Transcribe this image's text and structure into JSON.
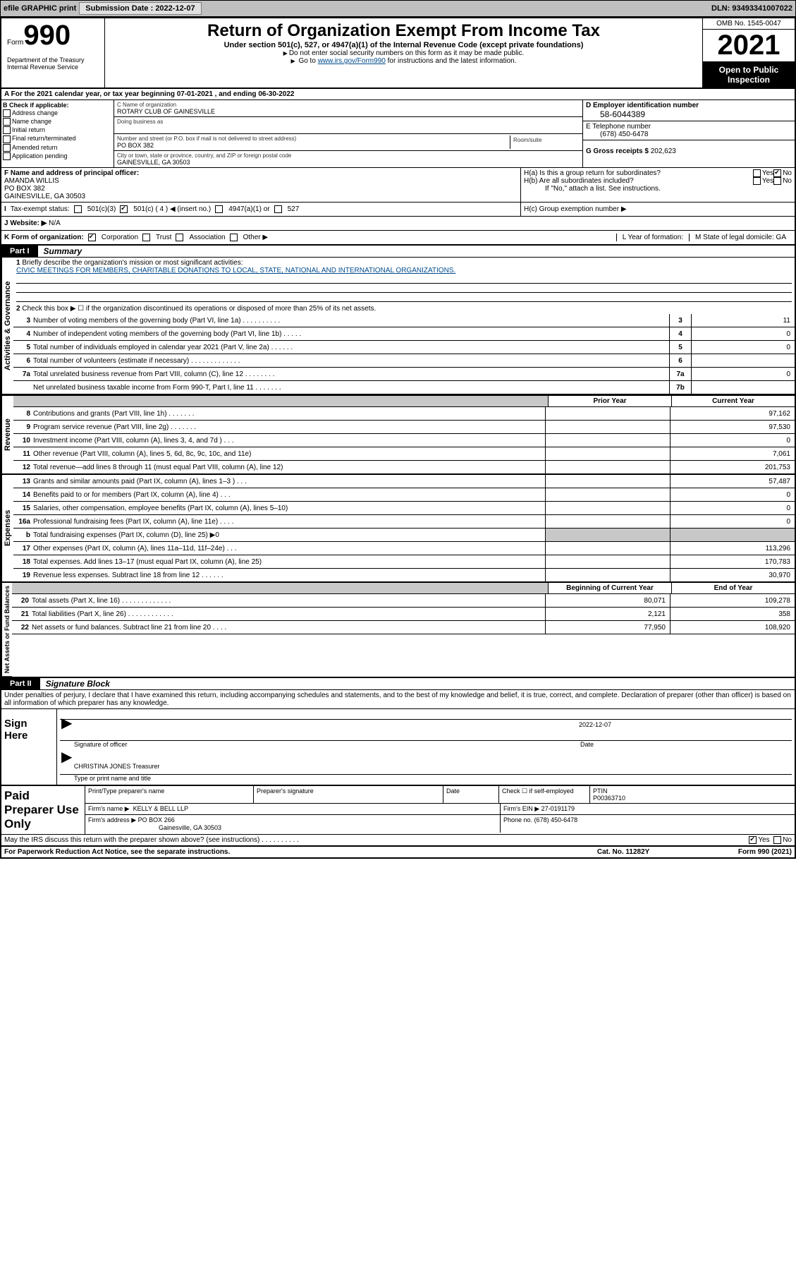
{
  "topbar": {
    "efile": "efile GRAPHIC print",
    "submission_label": "Submission Date : 2022-12-07",
    "dln": "DLN: 93493341007022"
  },
  "header": {
    "form_word": "Form",
    "form_num": "990",
    "dept": "Department of the Treasury\nInternal Revenue Service",
    "title": "Return of Organization Exempt From Income Tax",
    "sub": "Under section 501(c), 527, or 4947(a)(1) of the Internal Revenue Code (except private foundations)",
    "note1": "Do not enter social security numbers on this form as it may be made public.",
    "note2_pre": "Go to ",
    "note2_link": "www.irs.gov/Form990",
    "note2_post": " for instructions and the latest information.",
    "omb": "OMB No. 1545-0047",
    "year": "2021",
    "open": "Open to Public Inspection"
  },
  "lineA": "A For the 2021 calendar year, or tax year beginning 07-01-2021   , and ending 06-30-2022",
  "B": {
    "label": "B Check if applicable:",
    "opts": [
      "Address change",
      "Name change",
      "Initial return",
      "Final return/terminated",
      "Amended return",
      "Application pending"
    ]
  },
  "C": {
    "name_label": "C Name of organization",
    "name": "ROTARY CLUB OF GAINESVILLE",
    "dba_label": "Doing business as",
    "addr_label": "Number and street (or P.O. box if mail is not delivered to street address)",
    "addr": "PO BOX 382",
    "room_label": "Room/suite",
    "city_label": "City or town, state or province, country, and ZIP or foreign postal code",
    "city": "GAINESVILLE, GA  30503"
  },
  "D": {
    "ein_label": "D Employer identification number",
    "ein": "58-6044389",
    "tel_label": "E Telephone number",
    "tel": "(678) 450-6478",
    "gross_label": "G Gross receipts $",
    "gross": "202,623"
  },
  "F": {
    "label": "F  Name and address of principal officer:",
    "name": "AMANDA WILLIS",
    "addr1": "PO BOX 382",
    "addr2": "GAINESVILLE, GA  30503"
  },
  "H": {
    "a": "H(a)  Is this a group return for subordinates?",
    "b": "H(b)  Are all subordinates included?",
    "ifno": "If \"No,\" attach a list. See instructions.",
    "c": "H(c)  Group exemption number ▶",
    "yes": "Yes",
    "no": "No"
  },
  "I": {
    "label": "Tax-exempt status:",
    "o1": "501(c)(3)",
    "o2": "501(c) ( 4 ) ◀ (insert no.)",
    "o3": "4947(a)(1) or",
    "o4": "527"
  },
  "J": {
    "label": "Website: ▶",
    "val": "N/A"
  },
  "K": {
    "label": "K Form of organization:",
    "o1": "Corporation",
    "o2": "Trust",
    "o3": "Association",
    "o4": "Other ▶"
  },
  "L": {
    "label": "L Year of formation:"
  },
  "M": {
    "label": "M State of legal domicile: GA"
  },
  "PartI": {
    "tab": "Part I",
    "title": "Summary"
  },
  "mission": {
    "label": "Briefly describe the organization's mission or most significant activities:",
    "text": "CIVIC MEETINGS FOR MEMBERS, CHARITABLE DONATIONS TO LOCAL, STATE, NATIONAL AND INTERNATIONAL ORGANIZATIONS."
  },
  "line2": "Check this box ▶ ☐  if the organization discontinued its operations or disposed of more than 25% of its net assets.",
  "governance": [
    {
      "n": "3",
      "d": "Number of voting members of the governing body (Part VI, line 1a)  .  .  .  .  .  .  .  .  .  .",
      "b": "3",
      "v": "11"
    },
    {
      "n": "4",
      "d": "Number of independent voting members of the governing body (Part VI, line 1b)  .  .  .  .  .",
      "b": "4",
      "v": "0"
    },
    {
      "n": "5",
      "d": "Total number of individuals employed in calendar year 2021 (Part V, line 2a)  .  .  .  .  .  .",
      "b": "5",
      "v": "0"
    },
    {
      "n": "6",
      "d": "Total number of volunteers (estimate if necessary)  .  .  .  .  .  .  .  .  .  .  .  .  .",
      "b": "6",
      "v": ""
    },
    {
      "n": "7a",
      "d": "Total unrelated business revenue from Part VIII, column (C), line 12  .  .  .  .  .  .  .  .",
      "b": "7a",
      "v": "0"
    },
    {
      "n": "",
      "d": "Net unrelated business taxable income from Form 990-T, Part I, line 11  .  .  .  .  .  .  .",
      "b": "7b",
      "v": ""
    }
  ],
  "prior_label": "Prior Year",
  "current_label": "Current Year",
  "begin_label": "Beginning of Current Year",
  "end_label": "End of Year",
  "revenue": [
    {
      "n": "8",
      "d": "Contributions and grants (Part VIII, line 1h)  .  .  .  .  .  .  .",
      "p": "",
      "c": "97,162"
    },
    {
      "n": "9",
      "d": "Program service revenue (Part VIII, line 2g)  .  .  .  .  .  .  .",
      "p": "",
      "c": "97,530"
    },
    {
      "n": "10",
      "d": "Investment income (Part VIII, column (A), lines 3, 4, and 7d )  .  .  .",
      "p": "",
      "c": "0"
    },
    {
      "n": "11",
      "d": "Other revenue (Part VIII, column (A), lines 5, 6d, 8c, 9c, 10c, and 11e)",
      "p": "",
      "c": "7,061"
    },
    {
      "n": "12",
      "d": "Total revenue—add lines 8 through 11 (must equal Part VIII, column (A), line 12)",
      "p": "",
      "c": "201,753"
    }
  ],
  "expenses": [
    {
      "n": "13",
      "d": "Grants and similar amounts paid (Part IX, column (A), lines 1–3 )  .  .  .",
      "p": "",
      "c": "57,487"
    },
    {
      "n": "14",
      "d": "Benefits paid to or for members (Part IX, column (A), line 4)  .  .  .",
      "p": "",
      "c": "0"
    },
    {
      "n": "15",
      "d": "Salaries, other compensation, employee benefits (Part IX, column (A), lines 5–10)",
      "p": "",
      "c": "0"
    },
    {
      "n": "16a",
      "d": "Professional fundraising fees (Part IX, column (A), line 11e)  .  .  .  .",
      "p": "",
      "c": "0"
    },
    {
      "n": "b",
      "d": "Total fundraising expenses (Part IX, column (D), line 25) ▶0",
      "p": "shaded",
      "c": "shaded"
    },
    {
      "n": "17",
      "d": "Other expenses (Part IX, column (A), lines 11a–11d, 11f–24e)  .  .  .",
      "p": "",
      "c": "113,296"
    },
    {
      "n": "18",
      "d": "Total expenses. Add lines 13–17 (must equal Part IX, column (A), line 25)",
      "p": "",
      "c": "170,783"
    },
    {
      "n": "19",
      "d": "Revenue less expenses. Subtract line 18 from line 12  .  .  .  .  .  .",
      "p": "",
      "c": "30,970"
    }
  ],
  "netassets": [
    {
      "n": "20",
      "d": "Total assets (Part X, line 16)  .  .  .  .  .  .  .  .  .  .  .  .  .",
      "p": "80,071",
      "c": "109,278"
    },
    {
      "n": "21",
      "d": "Total liabilities (Part X, line 26)  .  .  .  .  .  .  .  .  .  .  .  .",
      "p": "2,121",
      "c": "358"
    },
    {
      "n": "22",
      "d": "Net assets or fund balances. Subtract line 21 from line 20  .  .  .  .",
      "p": "77,950",
      "c": "108,920"
    }
  ],
  "PartII": {
    "tab": "Part II",
    "title": "Signature Block"
  },
  "perjury": "Under penalties of perjury, I declare that I have examined this return, including accompanying schedules and statements, and to the best of my knowledge and belief, it is true, correct, and complete. Declaration of preparer (other than officer) is based on all information of which preparer has any knowledge.",
  "sign": {
    "here": "Sign Here",
    "sig_label": "Signature of officer",
    "date_val": "2022-12-07",
    "date_label": "Date",
    "name": "CHRISTINA JONES Treasurer",
    "name_label": "Type or print name and title"
  },
  "paid": {
    "here": "Paid Preparer Use Only",
    "h1": "Print/Type preparer's name",
    "h2": "Preparer's signature",
    "h3": "Date",
    "h4_pre": "Check ☐ if self-employed",
    "h5": "PTIN",
    "ptin": "P00363710",
    "firm_label": "Firm's name    ▶",
    "firm": "KELLY & BELL LLP",
    "ein_label": "Firm's EIN ▶",
    "ein": "27-0191179",
    "addr_label": "Firm's address ▶",
    "addr1": "PO BOX 266",
    "addr2": "Gainesville, GA  30503",
    "phone_label": "Phone no.",
    "phone": "(678) 450-6478"
  },
  "discuss": "May the IRS discuss this return with the preparer shown above? (see instructions)  .  .  .  .  .  .  .  .  .  .",
  "footer": {
    "l": "For Paperwork Reduction Act Notice, see the separate instructions.",
    "m": "Cat. No. 11282Y",
    "r": "Form 990 (2021)"
  },
  "vlabels": {
    "gov": "Activities & Governance",
    "rev": "Revenue",
    "exp": "Expenses",
    "net": "Net Assets or Fund Balances"
  }
}
